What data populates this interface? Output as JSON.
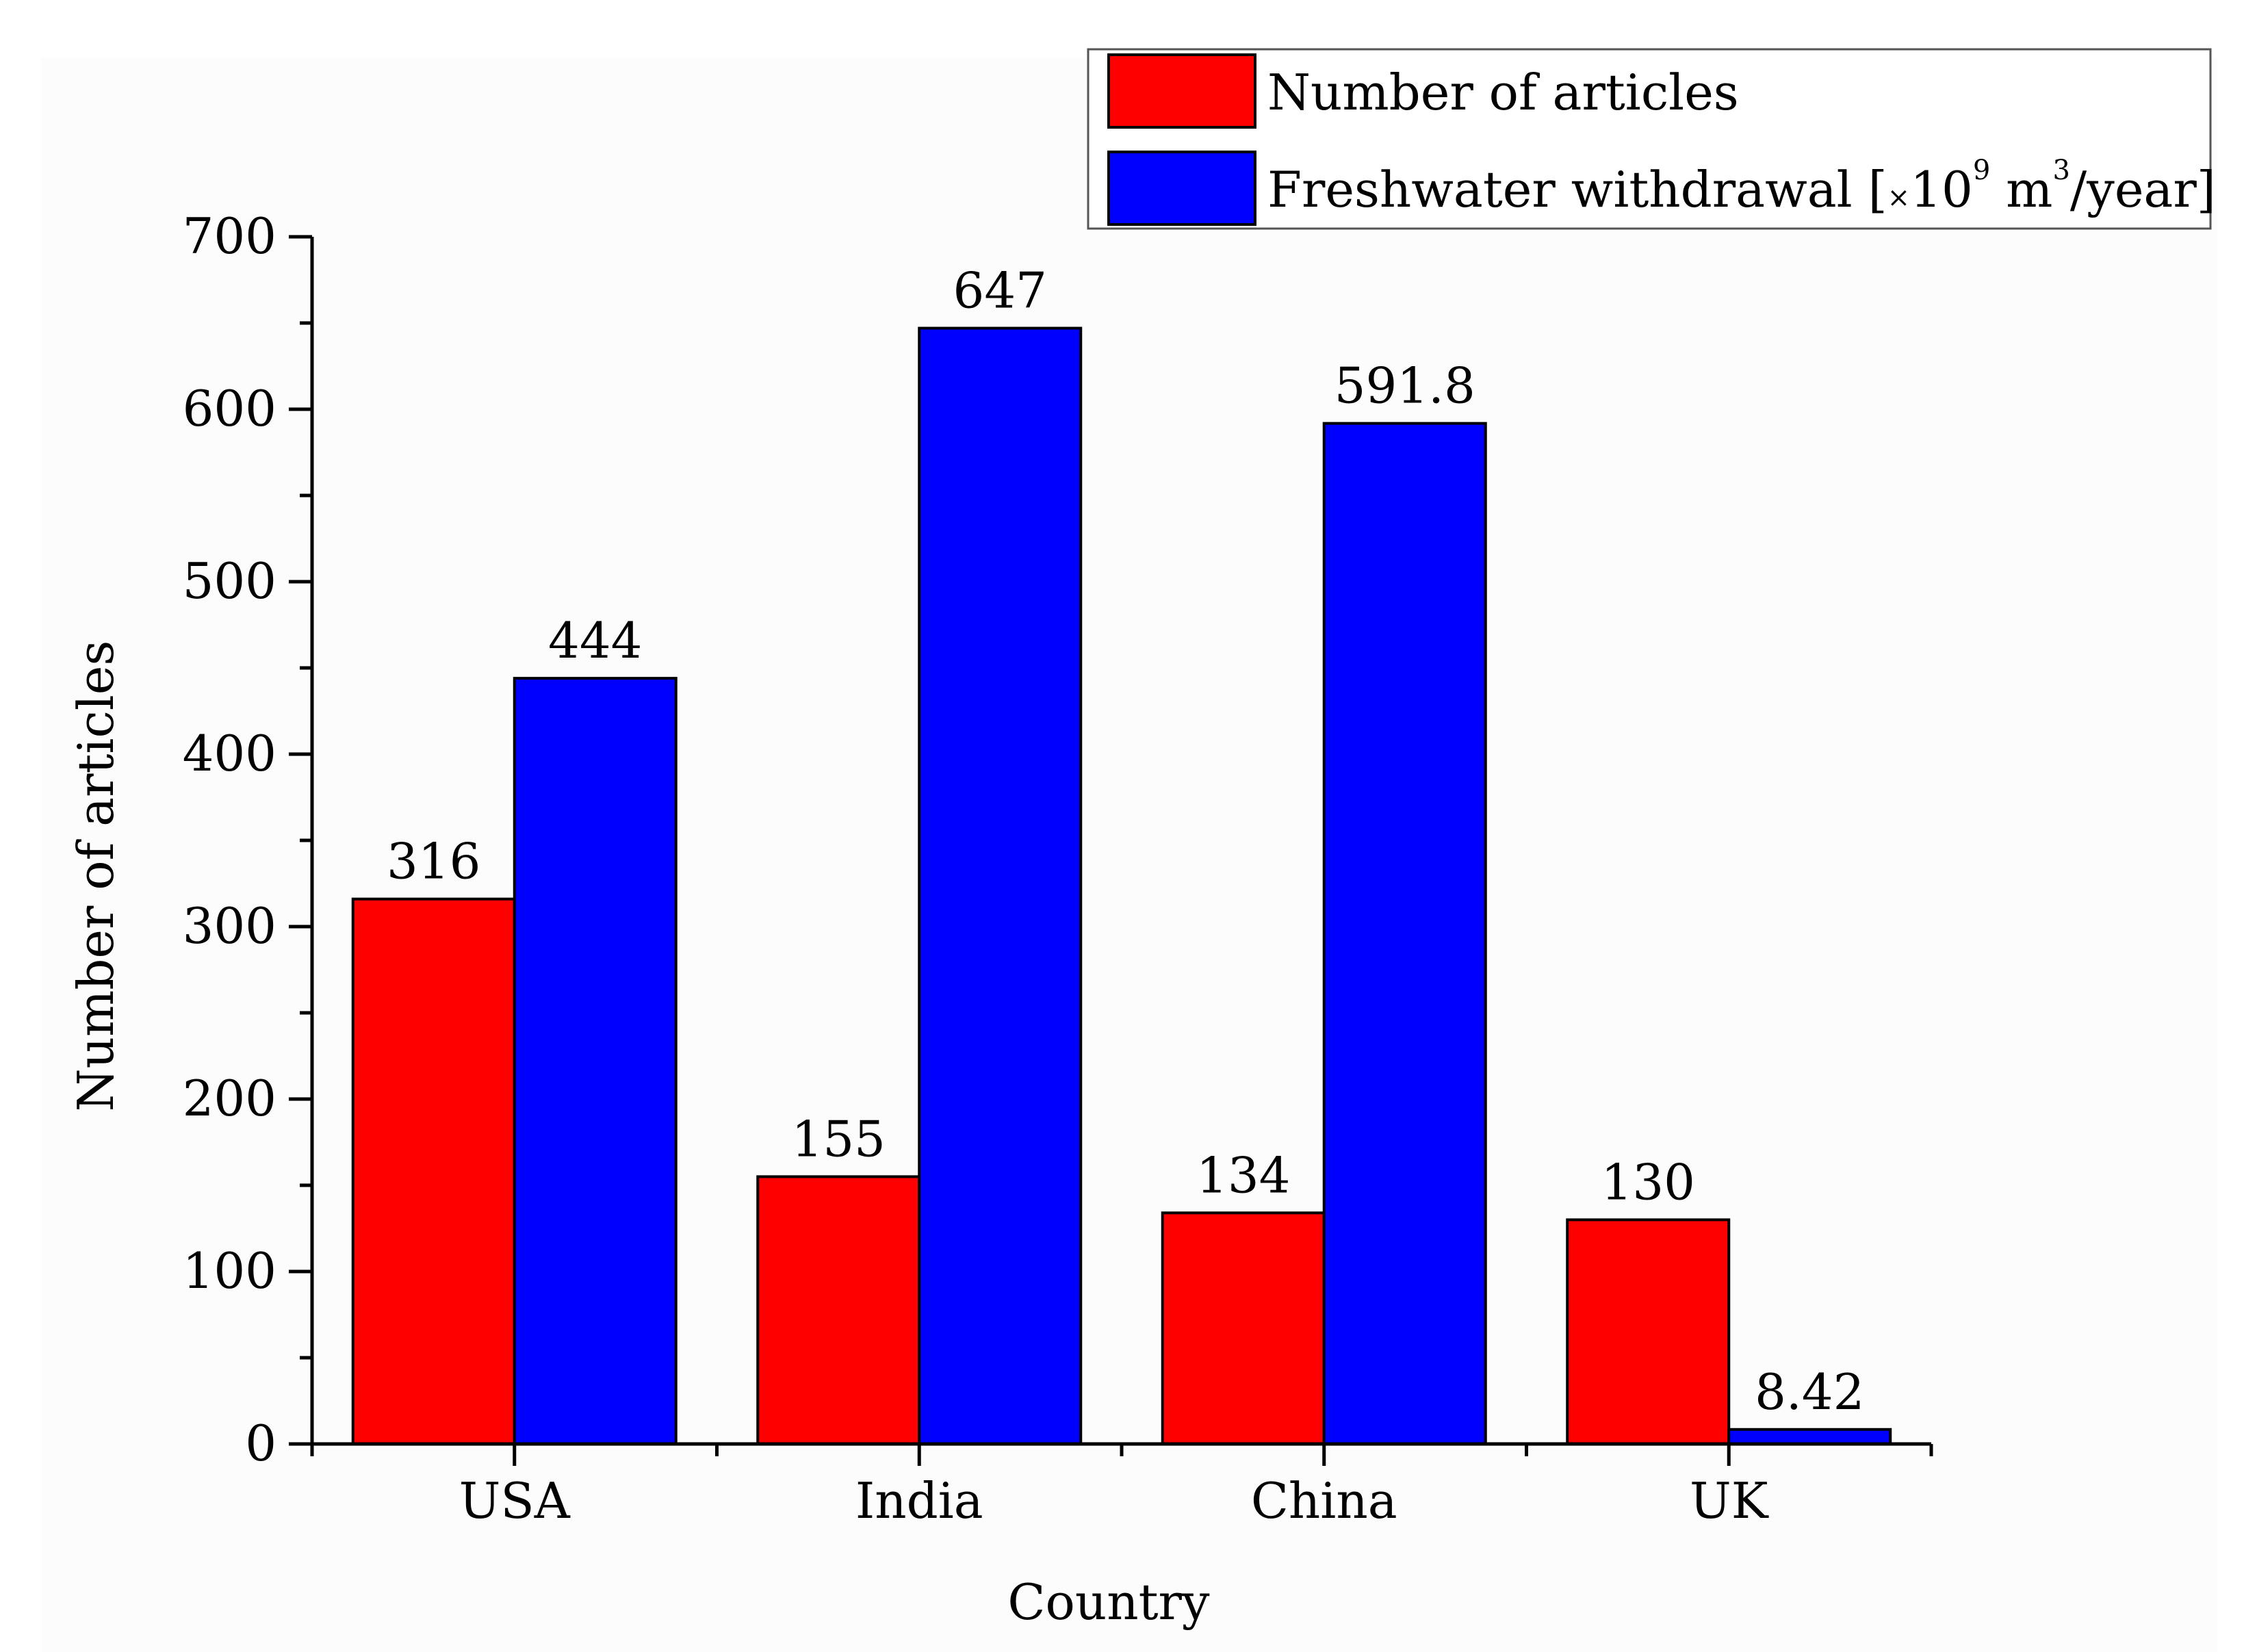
{
  "chart_data": {
    "type": "bar",
    "title": "",
    "xlabel": "Country",
    "ylabel": "Number of articles",
    "categories": [
      "USA",
      "India",
      "China",
      "UK"
    ],
    "series": [
      {
        "name": "Number of articles",
        "values": [
          316,
          155,
          134,
          130
        ],
        "color": "#ff0000",
        "labels": [
          "316",
          "155",
          "134",
          "130"
        ]
      },
      {
        "name": "Freshwater withdrawal [×10⁹ m³/year]",
        "values": [
          444,
          647,
          591.8,
          8.42
        ],
        "color": "#0000ff",
        "labels": [
          "444",
          "647",
          "591.8",
          "8.42"
        ]
      }
    ],
    "ylim": [
      0,
      700
    ],
    "yticks": [
      "0",
      "100",
      "200",
      "300",
      "400",
      "500",
      "600",
      "700"
    ],
    "grid": false,
    "legend": "top-right"
  },
  "legend": {
    "series1_label": "Number of articles",
    "series2_text_main": "Freshwater withdrawal [",
    "series2_text_times": "×",
    "series2_text_ten": "10",
    "series2_text_exp9": "9",
    "series2_text_m": " m",
    "series2_text_exp3": "3",
    "series2_text_end": "/year]"
  }
}
